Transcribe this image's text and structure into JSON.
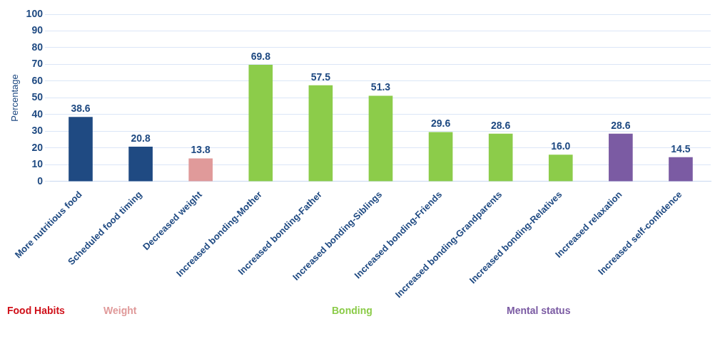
{
  "chart_data": {
    "type": "bar",
    "ylabel": "Percentage",
    "categories": [
      "More nutritious food",
      "Scheduled food timing",
      "Decreased weight",
      "Increased bonding-Mother",
      "Increased bonding-Father",
      "Increased bonding-Siblings",
      "Increased bonding-Friends",
      "Increased bonding-Grandparents",
      "Increased bonding-Relatives",
      "Increased relaxation",
      "Increased self-confidence"
    ],
    "values": [
      38.6,
      20.8,
      13.8,
      69.8,
      57.5,
      51.3,
      29.6,
      28.6,
      16.0,
      28.6,
      14.5
    ],
    "value_labels": [
      "38.6",
      "20.8",
      "13.8",
      "69.8",
      "57.5",
      "51.3",
      "29.6",
      "28.6",
      "16.0",
      "28.6",
      "14.5"
    ],
    "colors": [
      "#1f4a82",
      "#1f4a82",
      "#e09a9a",
      "#8ccc4a",
      "#8ccc4a",
      "#8ccc4a",
      "#8ccc4a",
      "#8ccc4a",
      "#8ccc4a",
      "#7b5ba3",
      "#7b5ba3"
    ],
    "ylim": [
      0,
      100
    ],
    "yticks": [
      0,
      10,
      20,
      30,
      40,
      50,
      60,
      70,
      80,
      90,
      100
    ],
    "grid": "y",
    "annotations": [
      "Food Habits",
      "Weight",
      "Bonding",
      "Mental status"
    ]
  }
}
